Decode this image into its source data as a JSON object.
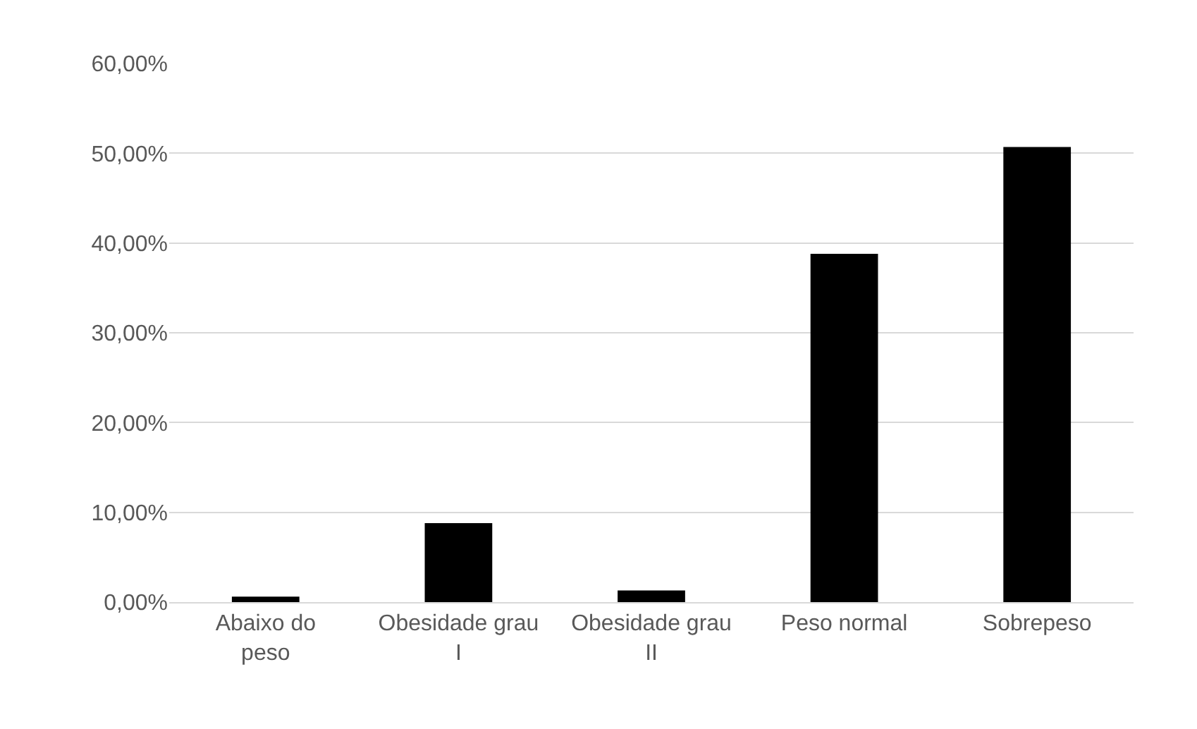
{
  "chart_data": {
    "type": "bar",
    "categories": [
      "Abaixo do peso",
      "Obesidade grau I",
      "Obesidade grau II",
      "Peso normal",
      "Sobrepeso"
    ],
    "values": [
      0.6,
      8.8,
      1.3,
      38.8,
      50.7
    ],
    "color": "#000000",
    "ylim": [
      0,
      60
    ],
    "yticks": [
      {
        "value": 0,
        "label": "0,00%"
      },
      {
        "value": 10,
        "label": "10,00%"
      },
      {
        "value": 20,
        "label": "20,00%"
      },
      {
        "value": 30,
        "label": "30,00%"
      },
      {
        "value": 40,
        "label": "40,00%"
      },
      {
        "value": 50,
        "label": "50,00%"
      },
      {
        "value": 60,
        "label": "60,00%"
      }
    ],
    "grid": "y"
  }
}
